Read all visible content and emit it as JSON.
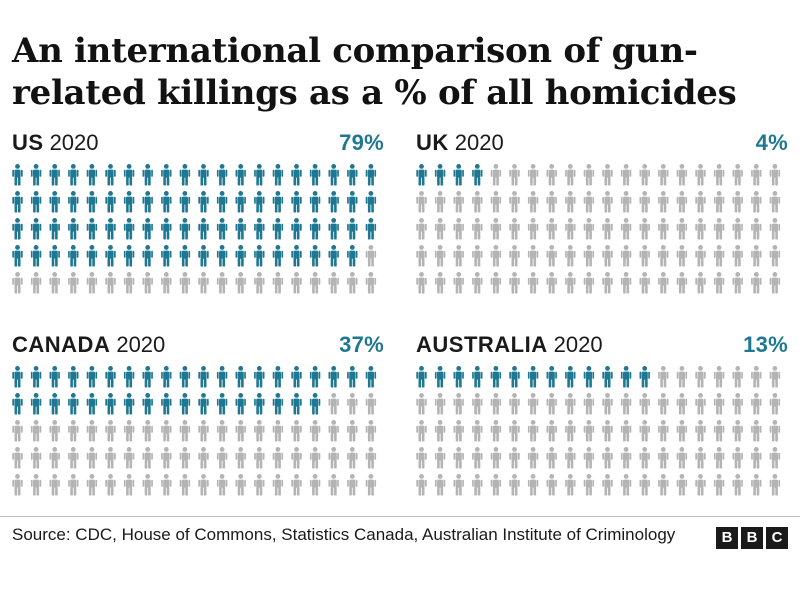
{
  "title": "An international comparison of gun-related killings as a % of all homicides",
  "colors": {
    "highlight": "#1f7891",
    "base": "#b4b4b4"
  },
  "chart_data": {
    "type": "pictogram",
    "icons_per_chart": 100,
    "icons_per_row": 20,
    "icon": "person-icon",
    "panels": [
      {
        "country": "US",
        "year": "2020",
        "percent_label": "79%",
        "value": 79
      },
      {
        "country": "UK",
        "year": "2020",
        "percent_label": "4%",
        "value": 4
      },
      {
        "country": "CANADA",
        "year": "2020",
        "percent_label": "37%",
        "value": 37
      },
      {
        "country": "AUSTRALIA",
        "year": "2020",
        "percent_label": "13%",
        "value": 13
      }
    ]
  },
  "footer": {
    "source": "Source: CDC, House of Commons, Statistics Canada, Australian Institute of Criminology",
    "logo_letters": [
      "B",
      "B",
      "C"
    ]
  }
}
